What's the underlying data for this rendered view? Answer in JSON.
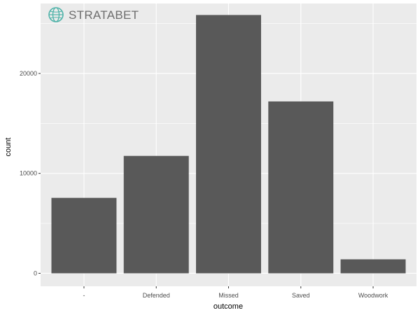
{
  "watermark": {
    "text": "STRATABET",
    "icon": "globe-icon",
    "icon_color": "#4fb3a9"
  },
  "chart_data": {
    "type": "bar",
    "categories": [
      "-",
      "Defended",
      "Missed",
      "Saved",
      "Woodwork"
    ],
    "values": [
      7550,
      11750,
      25850,
      17200,
      1400
    ],
    "xlabel": "outcome",
    "ylabel": "count",
    "ylim": [
      -1300,
      27000
    ],
    "yticks": [
      0,
      10000,
      20000
    ],
    "grid": true,
    "bar_color": "#595959",
    "panel_color": "#ebebeb",
    "grid_color": "#ffffff"
  }
}
